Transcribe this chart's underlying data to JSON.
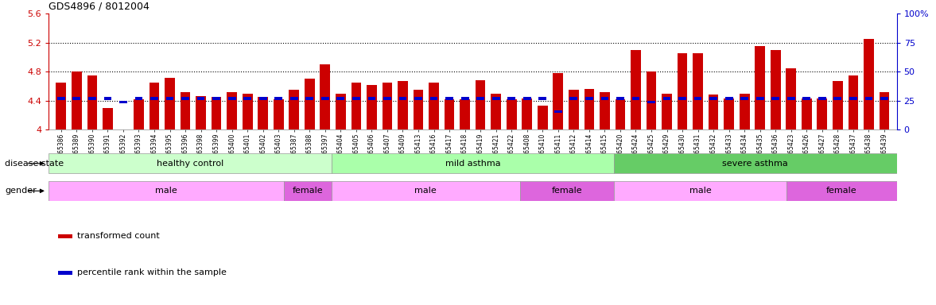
{
  "title": "GDS4896 / 8012004",
  "samples": [
    "GSM665386",
    "GSM665389",
    "GSM665390",
    "GSM665391",
    "GSM665392",
    "GSM665393",
    "GSM665394",
    "GSM665395",
    "GSM665396",
    "GSM665398",
    "GSM665399",
    "GSM665400",
    "GSM665401",
    "GSM665402",
    "GSM665403",
    "GSM665387",
    "GSM665388",
    "GSM665397",
    "GSM665404",
    "GSM665405",
    "GSM665406",
    "GSM665407",
    "GSM665409",
    "GSM665413",
    "GSM665416",
    "GSM665417",
    "GSM665418",
    "GSM665419",
    "GSM665421",
    "GSM665422",
    "GSM665408",
    "GSM665410",
    "GSM665411",
    "GSM665412",
    "GSM665414",
    "GSM665415",
    "GSM665420",
    "GSM665424",
    "GSM665425",
    "GSM665429",
    "GSM665430",
    "GSM665431",
    "GSM665432",
    "GSM665433",
    "GSM665434",
    "GSM665435",
    "GSM665436",
    "GSM665423",
    "GSM665426",
    "GSM665427",
    "GSM665428",
    "GSM665437",
    "GSM665438",
    "GSM665439"
  ],
  "bar_heights": [
    4.65,
    4.8,
    4.75,
    4.3,
    3.95,
    4.42,
    4.65,
    4.72,
    4.52,
    4.46,
    4.45,
    4.52,
    4.5,
    4.45,
    4.42,
    4.55,
    4.7,
    4.9,
    4.5,
    4.65,
    4.62,
    4.65,
    4.67,
    4.55,
    4.65,
    4.42,
    4.42,
    4.68,
    4.5,
    4.42,
    4.43,
    4.33,
    4.78,
    4.55,
    4.56,
    4.52,
    4.42,
    5.1,
    4.8,
    4.5,
    5.05,
    5.05,
    4.48,
    4.43,
    4.5,
    5.15,
    5.1,
    4.85,
    4.43,
    4.43,
    4.67,
    4.75,
    5.25,
    4.52
  ],
  "blue_heights": [
    4.43,
    4.43,
    4.43,
    4.43,
    4.38,
    4.43,
    4.43,
    4.43,
    4.43,
    4.43,
    4.43,
    4.43,
    4.43,
    4.43,
    4.43,
    4.43,
    4.43,
    4.43,
    4.43,
    4.43,
    4.43,
    4.43,
    4.43,
    4.43,
    4.43,
    4.43,
    4.43,
    4.43,
    4.43,
    4.43,
    4.43,
    4.43,
    4.25,
    4.43,
    4.43,
    4.43,
    4.43,
    4.43,
    4.38,
    4.43,
    4.43,
    4.43,
    4.43,
    4.43,
    4.43,
    4.43,
    4.43,
    4.43,
    4.43,
    4.43,
    4.43,
    4.43,
    4.43,
    4.43
  ],
  "ylim": [
    4.0,
    5.6
  ],
  "yticks": [
    4.0,
    4.4,
    4.8,
    5.2,
    5.6
  ],
  "ytick_labels": [
    "4",
    "4.4",
    "4.8",
    "5.2",
    "5.6"
  ],
  "right_yticks": [
    0,
    25,
    50,
    75,
    100
  ],
  "right_ytick_labels": [
    "0",
    "25",
    "50",
    "75",
    "100%"
  ],
  "bar_color": "#cc0000",
  "blue_color": "#0000cc",
  "background_color": "#ffffff",
  "disease_state_groups": [
    {
      "label": "healthy control",
      "start": 0,
      "end": 18,
      "color": "#ccffcc"
    },
    {
      "label": "mild asthma",
      "start": 18,
      "end": 36,
      "color": "#aaffaa"
    },
    {
      "label": "severe asthma",
      "start": 36,
      "end": 54,
      "color": "#66cc66"
    }
  ],
  "gender_groups": [
    {
      "label": "male",
      "start": 0,
      "end": 15,
      "color": "#ffaaff"
    },
    {
      "label": "female",
      "start": 15,
      "end": 18,
      "color": "#dd66dd"
    },
    {
      "label": "male",
      "start": 18,
      "end": 30,
      "color": "#ffaaff"
    },
    {
      "label": "female",
      "start": 30,
      "end": 36,
      "color": "#dd66dd"
    },
    {
      "label": "male",
      "start": 36,
      "end": 47,
      "color": "#ffaaff"
    },
    {
      "label": "female",
      "start": 47,
      "end": 54,
      "color": "#dd66dd"
    }
  ]
}
